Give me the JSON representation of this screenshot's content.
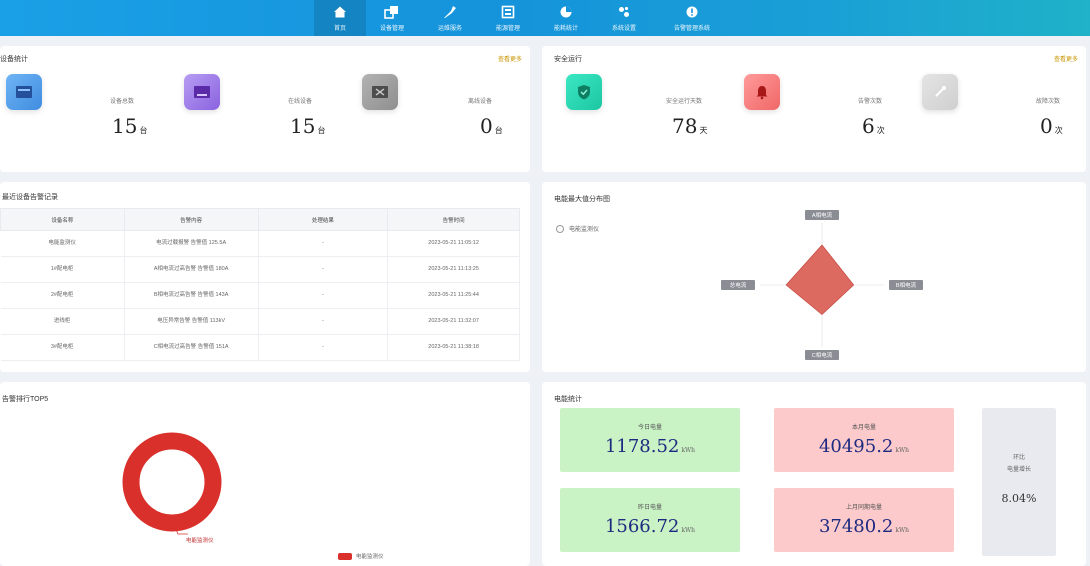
{
  "nav": {
    "items": [
      {
        "label": "首页",
        "icon": "home-icon"
      },
      {
        "label": "设备管理",
        "icon": "device-icon"
      },
      {
        "label": "运维服务",
        "icon": "wrench-icon"
      },
      {
        "label": "能源管理",
        "icon": "energy-icon"
      },
      {
        "label": "能耗统计",
        "icon": "pie-icon"
      },
      {
        "label": "系统设置",
        "icon": "settings-icon"
      },
      {
        "label": "告警管理系统",
        "icon": "alert-icon"
      }
    ]
  },
  "device_panel": {
    "title": "设备统计",
    "more_link": "查看更多",
    "stats": [
      {
        "label": "设备总数",
        "value": "15",
        "unit": "台"
      },
      {
        "label": "在线设备",
        "value": "15",
        "unit": "台"
      },
      {
        "label": "离线设备",
        "value": "0",
        "unit": "台"
      }
    ]
  },
  "safety_panel": {
    "title": "安全运行",
    "more_link": "查看更多",
    "stats": [
      {
        "label": "安全运行天数",
        "value": "78",
        "unit": "天"
      },
      {
        "label": "告警次数",
        "value": "6",
        "unit": "次"
      },
      {
        "label": "故障次数",
        "value": "0",
        "unit": "次"
      }
    ]
  },
  "log_panel": {
    "title": "最近设备告警记录",
    "columns": [
      "设备名称",
      "告警内容",
      "处理结果",
      "告警时间"
    ],
    "rows": [
      [
        "电能监测仪",
        "电流过载报警 告警值 125.5A",
        "-",
        "2023-05-21 11:05:12"
      ],
      [
        "1#配电柜",
        "A相电流过高告警 告警值 180A",
        "-",
        "2023-05-21 11:13:25"
      ],
      [
        "2#配电柜",
        "B相电流过高告警 告警值 143A",
        "-",
        "2023-05-21 11:25:44"
      ],
      [
        "进线柜",
        "电压异常告警 告警值 113kV",
        "-",
        "2023-05-21 11:32:07"
      ],
      [
        "3#配电柜",
        "C相电流过高告警 告警值 151A",
        "-",
        "2023-05-21 11:38:18"
      ]
    ]
  },
  "radar_panel": {
    "title": "电能最大值分布图",
    "legend": "电能监测仪",
    "axes": [
      "A相电流",
      "B相电流",
      "C相电流",
      "总电流"
    ],
    "values": [
      0.95,
      0.75,
      0.7,
      0.85
    ]
  },
  "top_panel": {
    "title": "告警排行TOP5",
    "legend": "电能监测仪",
    "donut_label": "电能监测仪"
  },
  "energy_panel": {
    "title": "电能统计",
    "tiles": [
      {
        "label": "今日电量",
        "value": "1178.52",
        "unit": "kWh",
        "bg": "#c9f2c5"
      },
      {
        "label": "本月电量",
        "value": "40495.2",
        "unit": "kWh",
        "bg": "#fccaca"
      },
      {
        "label": "昨日电量",
        "value": "1566.72",
        "unit": "kWh",
        "bg": "#c9f2c5"
      },
      {
        "label": "上月同期电量",
        "value": "37480.2",
        "unit": "kWh",
        "bg": "#fccaca"
      }
    ],
    "side": {
      "line1": "环比",
      "line2": "电量增长",
      "value": "8.04%"
    }
  },
  "colors": {
    "accent": "#1593db",
    "radar_fill": "#dd6a61",
    "donut": "#d9302b",
    "value_text": "#1d2a80",
    "link": "#c99400"
  }
}
